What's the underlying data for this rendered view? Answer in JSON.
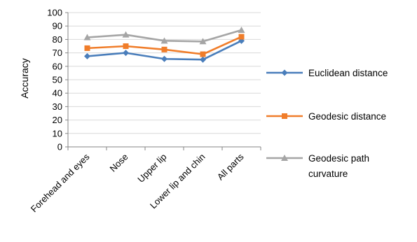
{
  "chart_data": {
    "type": "line",
    "title": "",
    "xlabel": "",
    "ylabel": "Accuracy",
    "ylim": [
      0,
      100
    ],
    "ytick_step": 10,
    "grid": "horizontal",
    "legend_position": "right",
    "categories": [
      "Forehead and eyes",
      "Nose",
      "Upper lip",
      "Lower lip and chin",
      "All parts"
    ],
    "series": [
      {
        "name": "Euclidean distance",
        "color": "#4a7ebb",
        "marker": "diamond",
        "values": [
          67.5,
          70,
          65.5,
          65,
          79
        ]
      },
      {
        "name": "Geodesic distance",
        "color": "#f07d2a",
        "marker": "square",
        "values": [
          73.5,
          75,
          72.5,
          69,
          82
        ]
      },
      {
        "name": "Geodesic path curvature",
        "legend_lines": [
          "Geodesic path",
          "curvature"
        ],
        "color": "#a5a5a5",
        "marker": "triangle",
        "values": [
          81.5,
          83.5,
          79,
          78.5,
          87
        ]
      }
    ]
  }
}
